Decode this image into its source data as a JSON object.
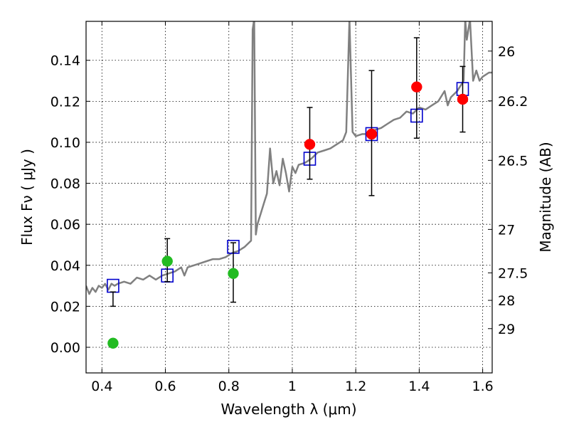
{
  "chart_data": {
    "type": "scatter",
    "xlabel": "Wavelength  λ (μm)",
    "ylabel": "Flux  Fν  ( μJy )",
    "ylabel_right": "Magnitude (AB)",
    "xlim": [
      0.35,
      1.63
    ],
    "ylim": [
      -0.0125,
      0.159
    ],
    "grid": true,
    "x_ticks": [
      0.4,
      0.6,
      0.8,
      1.0,
      1.2,
      1.4,
      1.6
    ],
    "x_tick_labels": [
      "0.4",
      "0.6",
      "0.8",
      "1",
      "1.2",
      "1.4",
      "1.6"
    ],
    "y_ticks": [
      0.0,
      0.02,
      0.04,
      0.06,
      0.08,
      0.1,
      0.12,
      0.14
    ],
    "y_tick_labels": [
      "0.00",
      "0.02",
      "0.04",
      "0.06",
      "0.08",
      "0.10",
      "0.12",
      "0.14"
    ],
    "right_ticks": [
      {
        "label": "26",
        "flux": 0.1445
      },
      {
        "label": "26.2",
        "flux": 0.1202
      },
      {
        "label": "26.5",
        "flux": 0.0912
      },
      {
        "label": "27",
        "flux": 0.0575
      },
      {
        "label": "27.5",
        "flux": 0.0363
      },
      {
        "label": "28",
        "flux": 0.0229
      },
      {
        "label": "29",
        "flux": 0.0091
      }
    ],
    "model_spectrum": {
      "color": "#808080",
      "points": [
        [
          0.35,
          0.03
        ],
        [
          0.36,
          0.026
        ],
        [
          0.37,
          0.029
        ],
        [
          0.38,
          0.027
        ],
        [
          0.39,
          0.03
        ],
        [
          0.4,
          0.029
        ],
        [
          0.41,
          0.031
        ],
        [
          0.42,
          0.028
        ],
        [
          0.43,
          0.031
        ],
        [
          0.44,
          0.03
        ],
        [
          0.45,
          0.031
        ],
        [
          0.47,
          0.032
        ],
        [
          0.49,
          0.031
        ],
        [
          0.51,
          0.034
        ],
        [
          0.53,
          0.033
        ],
        [
          0.55,
          0.035
        ],
        [
          0.57,
          0.033
        ],
        [
          0.59,
          0.035
        ],
        [
          0.61,
          0.036
        ],
        [
          0.63,
          0.037
        ],
        [
          0.65,
          0.039
        ],
        [
          0.66,
          0.035
        ],
        [
          0.67,
          0.039
        ],
        [
          0.69,
          0.04
        ],
        [
          0.71,
          0.041
        ],
        [
          0.73,
          0.042
        ],
        [
          0.75,
          0.043
        ],
        [
          0.77,
          0.043
        ],
        [
          0.79,
          0.044
        ],
        [
          0.81,
          0.046
        ],
        [
          0.83,
          0.047
        ],
        [
          0.85,
          0.049
        ],
        [
          0.87,
          0.052
        ],
        [
          0.875,
          0.155
        ],
        [
          0.88,
          0.16
        ],
        [
          0.885,
          0.055
        ],
        [
          0.89,
          0.06
        ],
        [
          0.9,
          0.065
        ],
        [
          0.91,
          0.07
        ],
        [
          0.92,
          0.075
        ],
        [
          0.93,
          0.097
        ],
        [
          0.94,
          0.08
        ],
        [
          0.95,
          0.086
        ],
        [
          0.96,
          0.079
        ],
        [
          0.97,
          0.092
        ],
        [
          0.98,
          0.085
        ],
        [
          0.99,
          0.076
        ],
        [
          1.0,
          0.088
        ],
        [
          1.01,
          0.085
        ],
        [
          1.02,
          0.089
        ],
        [
          1.04,
          0.09
        ],
        [
          1.06,
          0.092
        ],
        [
          1.08,
          0.095
        ],
        [
          1.1,
          0.096
        ],
        [
          1.12,
          0.097
        ],
        [
          1.14,
          0.099
        ],
        [
          1.16,
          0.101
        ],
        [
          1.17,
          0.105
        ],
        [
          1.18,
          0.16
        ],
        [
          1.19,
          0.105
        ],
        [
          1.2,
          0.103
        ],
        [
          1.22,
          0.104
        ],
        [
          1.24,
          0.104
        ],
        [
          1.26,
          0.106
        ],
        [
          1.28,
          0.107
        ],
        [
          1.3,
          0.109
        ],
        [
          1.32,
          0.111
        ],
        [
          1.34,
          0.112
        ],
        [
          1.36,
          0.115
        ],
        [
          1.38,
          0.114
        ],
        [
          1.4,
          0.117
        ],
        [
          1.42,
          0.116
        ],
        [
          1.44,
          0.118
        ],
        [
          1.46,
          0.12
        ],
        [
          1.48,
          0.125
        ],
        [
          1.49,
          0.118
        ],
        [
          1.5,
          0.122
        ],
        [
          1.52,
          0.125
        ],
        [
          1.54,
          0.13
        ],
        [
          1.545,
          0.16
        ],
        [
          1.55,
          0.15
        ],
        [
          1.56,
          0.16
        ],
        [
          1.57,
          0.13
        ],
        [
          1.58,
          0.135
        ],
        [
          1.59,
          0.13
        ],
        [
          1.6,
          0.132
        ],
        [
          1.62,
          0.134
        ],
        [
          1.63,
          0.134
        ]
      ]
    },
    "series": [
      {
        "name": "",
        "marker": "square-open",
        "color": "#0000cc",
        "points": [
          {
            "x": 0.435,
            "y": 0.03
          },
          {
            "x": 0.606,
            "y": 0.035
          },
          {
            "x": 0.814,
            "y": 0.049
          },
          {
            "x": 1.055,
            "y": 0.092
          },
          {
            "x": 1.25,
            "y": 0.104
          },
          {
            "x": 1.392,
            "y": 0.113
          },
          {
            "x": 1.537,
            "y": 0.126
          }
        ]
      },
      {
        "name": "",
        "marker": "circle-filled",
        "color": "#22bb22",
        "points": [
          {
            "x": 0.435,
            "y": 0.002,
            "err_low": 0.02,
            "err_high": 0.027
          },
          {
            "x": 0.606,
            "y": 0.042,
            "err_low": 0.032,
            "err_high": 0.053
          },
          {
            "x": 0.814,
            "y": 0.036,
            "err_low": 0.022,
            "err_high": 0.051
          }
        ]
      },
      {
        "name": "",
        "marker": "circle-filled",
        "color": "#ff0000",
        "points": [
          {
            "x": 1.055,
            "y": 0.099,
            "err_low": 0.082,
            "err_high": 0.117
          },
          {
            "x": 1.25,
            "y": 0.104,
            "err_low": 0.074,
            "err_high": 0.135
          },
          {
            "x": 1.392,
            "y": 0.127,
            "err_low": 0.102,
            "err_high": 0.151
          },
          {
            "x": 1.537,
            "y": 0.121,
            "err_low": 0.105,
            "err_high": 0.137
          }
        ]
      }
    ]
  }
}
